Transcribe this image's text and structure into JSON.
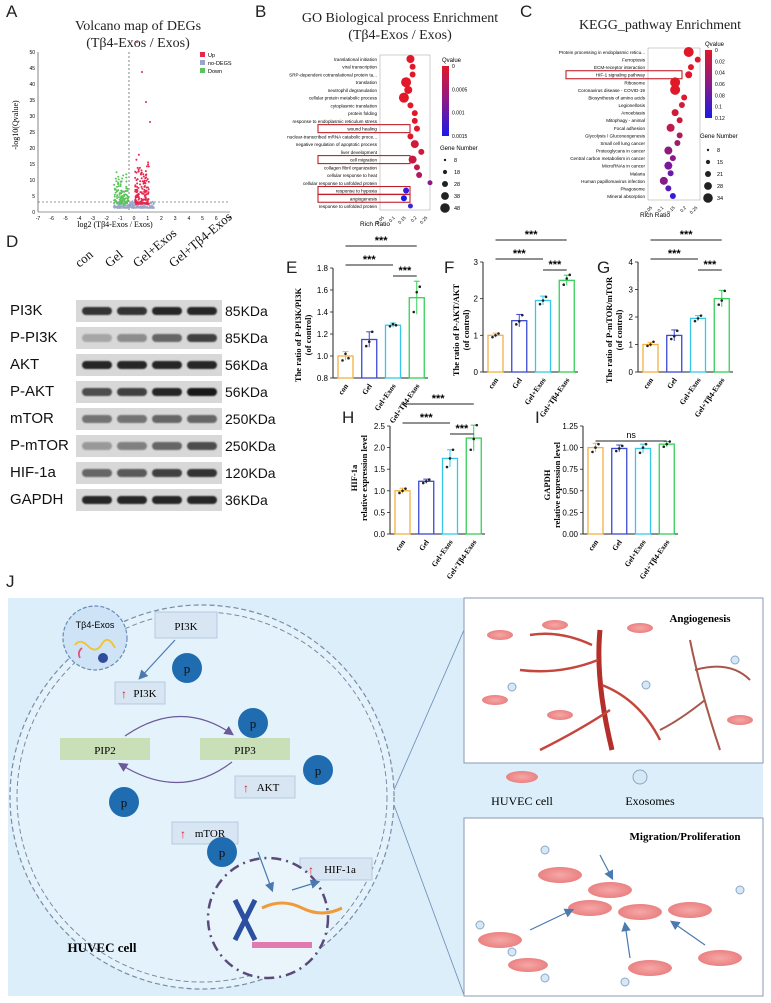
{
  "panels": {
    "A": {
      "letter": "A",
      "title_line1": "Volcano map of DEGs",
      "title_line2": "(Tβ4-Exos / Exos)",
      "xlabel": "log2 (Tβ4-Exos / Exos)",
      "ylabel": "-log10(Qvalue)",
      "xticks": [
        "-7",
        "-6",
        "-5",
        "-4",
        "-3",
        "-2",
        "-1",
        "0",
        "1",
        "2",
        "3",
        "4",
        "5",
        "6",
        "7"
      ],
      "yticks": [
        "0",
        "5",
        "10",
        "15",
        "20",
        "25",
        "30",
        "35",
        "40",
        "45",
        "50"
      ],
      "legend": [
        "Up",
        "no-DEGS",
        "Down"
      ],
      "colors": {
        "up": "#e8254c",
        "nodeg": "#9aa6c8",
        "down": "#5cc45a"
      }
    },
    "B": {
      "letter": "B",
      "title_line1": "GO Biological process Enrichment",
      "title_line2": "(Tβ4-Exos / Exos)",
      "xlabel": "Rich Ratio",
      "xticks": [
        "0.05",
        "0.1",
        "0.15",
        "0.2",
        "0.25"
      ],
      "terms": [
        "translational initiation",
        "viral transcription",
        "SRP-dependent cotranslational protein ta...",
        "translation",
        "neutrophil degranulation",
        "cellular protein metabolic process",
        "cytoplasmic translation",
        "protein folding",
        "response to endoplasmic reticulum stress",
        "wound healing",
        "nuclear-transcribed mRNA catabolic proce...",
        "negative regulation of apoptotic process",
        "liver development",
        "cell migration",
        "collagen fibril organization",
        "cellular response to heat",
        "cellular response to unfolded protein",
        "response to hypoxia",
        "angiogenesis",
        "response to unfolded protein"
      ],
      "boxed": [
        9,
        13,
        17,
        18
      ],
      "legend_title": "Qvalue",
      "legend_ticks": [
        "0",
        "0.0005",
        "0.001",
        "0.0015"
      ],
      "size_title": "Gene Number",
      "size_ticks": [
        "8",
        "18",
        "28",
        "38",
        "48"
      ]
    },
    "C": {
      "letter": "C",
      "title": "KEGG_pathway Enrichment",
      "xlabel": "Rich Ratio",
      "xticks": [
        "0.05",
        "0.1",
        "0.15",
        "0.2",
        "0.25"
      ],
      "terms": [
        "Protein processing in endoplasmic reticu...",
        "Ferroptosis",
        "ECM-receptor interaction",
        "HIF-1 signaling pathway",
        "Ribosome",
        "Coronavirus disease - COVID-19",
        "Biosynthesis of amino acids",
        "Legionellosis",
        "Amoebiasis",
        "Mitophagy - animal",
        "Focal adhesion",
        "Glycolysis / Gluconeogenesis",
        "Small cell lung cancer",
        "Proteoglycans in cancer",
        "Central carbon metabolism in cancer",
        "MicroRNAs in cancer",
        "Malaria",
        "Human papillomavirus infection",
        "Phagosome",
        "Mineral absorption"
      ],
      "boxed": [
        3
      ],
      "legend_title": "Qvalue",
      "legend_ticks": [
        "0",
        "0.02",
        "0.04",
        "0.06",
        "0.08",
        "0.1",
        "0.12"
      ],
      "size_title": "Gene Number",
      "size_ticks": [
        "8",
        "15",
        "21",
        "28",
        "34"
      ]
    },
    "D": {
      "letter": "D",
      "lanes": [
        "con",
        "Gel",
        "Gel+Exos",
        "Gel+Tβ4-Exos"
      ],
      "rows": [
        {
          "label": "PI3K",
          "kda": "85KDa"
        },
        {
          "label": "P-PI3K",
          "kda": "85KDa"
        },
        {
          "label": "AKT",
          "kda": "56KDa"
        },
        {
          "label": "P-AKT",
          "kda": "56KDa"
        },
        {
          "label": "mTOR",
          "kda": "250KDa"
        },
        {
          "label": "P-mTOR",
          "kda": "250KDa"
        },
        {
          "label": "HIF-1a",
          "kda": "120KDa"
        },
        {
          "label": "GAPDH",
          "kda": "36KDa"
        }
      ]
    },
    "E": {
      "letter": "E",
      "ylabel1": "The ratio of P-PI3K/PI3K",
      "ylabel2": "(of control)",
      "sig": [
        "***",
        "***",
        "***"
      ]
    },
    "F": {
      "letter": "F",
      "ylabel1": "The ratio of P-AKT/AKT",
      "ylabel2": "(of control)",
      "sig": [
        "***",
        "***",
        "***"
      ]
    },
    "G": {
      "letter": "G",
      "ylabel1": "The ratio of P-mTOR/mTOR",
      "ylabel2": "(of control)",
      "sig": [
        "***",
        "***",
        "***"
      ]
    },
    "H": {
      "letter": "H",
      "ylabel1": "HIF-1a",
      "ylabel2": "relative expression level",
      "sig": [
        "***",
        "***",
        "***"
      ]
    },
    "I": {
      "letter": "I",
      "ylabel1": "GAPDH",
      "ylabel2": "relative expression level",
      "sig": [
        "ns"
      ]
    },
    "J": {
      "letter": "J",
      "exo_label": "Tβ4-Exos",
      "pi3k": "PI3K",
      "pi3k_active": "PI3K",
      "pip2": "PIP2",
      "pip3": "PIP3",
      "akt": "AKT",
      "mtor": "mTOR",
      "hif": "HIF-1a",
      "p": "p",
      "huvec_cell": "HUVEC cell",
      "angiogenesis": "Angiogenesis",
      "legend_cell": "HUVEC cell",
      "legend_exo": "Exosomes",
      "migration": "Migration/Proliferation"
    }
  },
  "chart_data": [
    {
      "panel": "E",
      "type": "bar",
      "categories": [
        "con",
        "Gel",
        "Gel+Exos",
        "Gel+Tβ4-Exos"
      ],
      "values": [
        1.0,
        1.15,
        1.28,
        1.53
      ],
      "errors": [
        0.04,
        0.07,
        0.02,
        0.15
      ],
      "points": [
        [
          0.96,
          1.02,
          0.98
        ],
        [
          1.09,
          1.13,
          1.22
        ],
        [
          1.27,
          1.29,
          1.28
        ],
        [
          1.4,
          1.58,
          1.63
        ]
      ],
      "ylim": [
        0.8,
        1.8
      ],
      "yticks": [
        "0.8",
        "1.0",
        "1.2",
        "1.4",
        "1.6",
        "1.8"
      ],
      "colors": [
        "#f5b041",
        "#3b49d4",
        "#35c8e8",
        "#34d058"
      ]
    },
    {
      "panel": "F",
      "type": "bar",
      "categories": [
        "con",
        "Gel",
        "Gel+Exos",
        "Gel+Tβ4-Exos"
      ],
      "values": [
        1.0,
        1.4,
        1.95,
        2.5
      ],
      "errors": [
        0.06,
        0.17,
        0.12,
        0.14
      ],
      "points": [
        [
          0.95,
          1.0,
          1.05
        ],
        [
          1.3,
          1.38,
          1.55
        ],
        [
          1.85,
          1.95,
          2.05
        ],
        [
          2.38,
          2.55,
          2.65
        ]
      ],
      "ylim": [
        0,
        3
      ],
      "yticks": [
        "0",
        "1",
        "2",
        "3"
      ],
      "colors": [
        "#f5b041",
        "#3b49d4",
        "#35c8e8",
        "#34d058"
      ]
    },
    {
      "panel": "G",
      "type": "bar",
      "categories": [
        "con",
        "Gel",
        "Gel+Exos",
        "Gel+Tβ4-Exos"
      ],
      "values": [
        1.0,
        1.33,
        1.95,
        2.67
      ],
      "errors": [
        0.08,
        0.2,
        0.1,
        0.3
      ],
      "points": [
        [
          0.95,
          1.0,
          1.1
        ],
        [
          1.2,
          1.3,
          1.5
        ],
        [
          1.85,
          1.95,
          2.05
        ],
        [
          2.45,
          2.6,
          2.95
        ]
      ],
      "ylim": [
        0,
        4
      ],
      "yticks": [
        "0",
        "1",
        "2",
        "3",
        "4"
      ],
      "colors": [
        "#f5b041",
        "#3b49d4",
        "#35c8e8",
        "#34d058"
      ]
    },
    {
      "panel": "H",
      "type": "bar",
      "categories": [
        "con",
        "Gel",
        "Gel+Exos",
        "Gel+Tβ4-Exos"
      ],
      "values": [
        1.0,
        1.22,
        1.75,
        2.22
      ],
      "errors": [
        0.06,
        0.05,
        0.2,
        0.3
      ],
      "points": [
        [
          0.95,
          1.0,
          1.05
        ],
        [
          1.18,
          1.22,
          1.26
        ],
        [
          1.55,
          1.75,
          1.95
        ],
        [
          1.95,
          2.2,
          2.52
        ]
      ],
      "ylim": [
        0,
        2.5
      ],
      "yticks": [
        "0.0",
        "0.5",
        "1.0",
        "1.5",
        "2.0",
        "2.5"
      ],
      "colors": [
        "#f5b041",
        "#3b49d4",
        "#35c8e8",
        "#34d058"
      ]
    },
    {
      "panel": "I",
      "type": "bar",
      "categories": [
        "con",
        "Gel",
        "Gel+Exos",
        "Gel+Tβ4-Exos"
      ],
      "values": [
        1.0,
        0.99,
        0.99,
        1.04
      ],
      "errors": [
        0.05,
        0.04,
        0.05,
        0.03
      ],
      "points": [
        [
          0.95,
          1.0,
          1.04
        ],
        [
          0.96,
          0.99,
          1.02
        ],
        [
          0.94,
          1.0,
          1.04
        ],
        [
          1.01,
          1.04,
          1.07
        ]
      ],
      "ylim": [
        0,
        1.25
      ],
      "yticks": [
        "0.00",
        "0.25",
        "0.50",
        "0.75",
        "1.00",
        "1.25"
      ],
      "colors": [
        "#f5b041",
        "#3b49d4",
        "#35c8e8",
        "#34d058"
      ]
    }
  ]
}
